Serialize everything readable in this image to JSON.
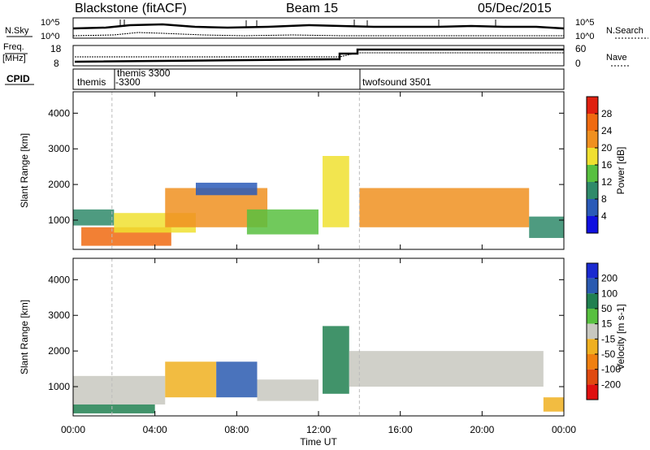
{
  "header": {
    "title": "Blackstone (fitACF)",
    "beam": "Beam 15",
    "date": "05/Dec/2015"
  },
  "noise_panel": {
    "left_label": "N.Sky",
    "right_label": "N.Search",
    "ticks": [
      "10^5",
      "10^0"
    ]
  },
  "freq_panel": {
    "left_label_line1": "Freq.",
    "left_label_line2": "[MHz]",
    "right_label": "Nave",
    "left_ticks": [
      "18",
      "8"
    ],
    "right_ticks": [
      "60",
      "0"
    ]
  },
  "cpid_panel": {
    "label": "CPID",
    "programs": [
      {
        "name": "themis",
        "start_hour": 0.0
      },
      {
        "name": "themis 3300",
        "line2": "-3300",
        "start_hour": 1.9
      },
      {
        "name": "twofsound 3501",
        "start_hour": 14.0
      }
    ]
  },
  "x_axis": {
    "label": "Time UT",
    "ticks": [
      "00:00",
      "04:00",
      "08:00",
      "12:00",
      "16:00",
      "20:00",
      "00:00"
    ]
  },
  "chart_data": [
    {
      "type": "heatmap",
      "name": "power",
      "ylabel": "Slant Range [km]",
      "xlim": [
        0,
        24
      ],
      "ylim": [
        180,
        4600
      ],
      "y_ticks": [
        "1000",
        "2000",
        "3000",
        "4000"
      ],
      "colorbar": {
        "label": "Power [dB]",
        "ticks": [
          "4",
          "8",
          "12",
          "16",
          "20",
          "24",
          "28"
        ],
        "colors": [
          "#1010e0",
          "#2a5ab8",
          "#2f8a6a",
          "#58c040",
          "#f0e030",
          "#f09020",
          "#f06a10",
          "#e02010"
        ]
      },
      "regions": [
        {
          "t": [
            0.0,
            2.0
          ],
          "r": [
            850,
            1300
          ],
          "level": 2
        },
        {
          "t": [
            0.4,
            4.8
          ],
          "r": [
            280,
            800
          ],
          "level": 6
        },
        {
          "t": [
            2.0,
            6.0
          ],
          "r": [
            650,
            1200
          ],
          "level": 4
        },
        {
          "t": [
            4.5,
            9.5
          ],
          "r": [
            800,
            1900
          ],
          "level": 5
        },
        {
          "t": [
            6.0,
            9.0
          ],
          "r": [
            1700,
            2050
          ],
          "level": 1
        },
        {
          "t": [
            8.5,
            12.0
          ],
          "r": [
            600,
            1300
          ],
          "level": 3
        },
        {
          "t": [
            12.2,
            13.5
          ],
          "r": [
            800,
            2800
          ],
          "level": 4
        },
        {
          "t": [
            14.0,
            22.3
          ],
          "r": [
            800,
            1900
          ],
          "level": 5
        },
        {
          "t": [
            22.3,
            24.0
          ],
          "r": [
            500,
            1100
          ],
          "level": 2
        }
      ]
    },
    {
      "type": "heatmap",
      "name": "velocity",
      "ylabel": "Slant Range [km]",
      "xlim": [
        0,
        24
      ],
      "ylim": [
        180,
        4600
      ],
      "y_ticks": [
        "1000",
        "2000",
        "3000",
        "4000"
      ],
      "colorbar": {
        "label": "Velocity [m s-1]",
        "ticks": [
          "200",
          "100",
          "50",
          "15",
          "-15",
          "-50",
          "-100",
          "-200"
        ],
        "colors": [
          "#1a2ad0",
          "#2a5ab0",
          "#208050",
          "#58c040",
          "#c8c8c0",
          "#f0b020",
          "#f08010",
          "#e04a10",
          "#e01010"
        ]
      },
      "regions": [
        {
          "t": [
            0.0,
            4.5
          ],
          "r": [
            500,
            1300
          ],
          "value": -15
        },
        {
          "t": [
            0.0,
            4.0
          ],
          "r": [
            250,
            500
          ],
          "value": 50
        },
        {
          "t": [
            4.5,
            7.0
          ],
          "r": [
            700,
            1700
          ],
          "value": -50
        },
        {
          "t": [
            7.0,
            9.0
          ],
          "r": [
            700,
            1700
          ],
          "value": 100
        },
        {
          "t": [
            9.0,
            12.0
          ],
          "r": [
            600,
            1200
          ],
          "value": -15
        },
        {
          "t": [
            12.2,
            13.5
          ],
          "r": [
            800,
            2700
          ],
          "value": 50
        },
        {
          "t": [
            13.5,
            23.0
          ],
          "r": [
            1000,
            2000
          ],
          "value": -15
        },
        {
          "t": [
            23.0,
            24.0
          ],
          "r": [
            300,
            700
          ],
          "value": -50
        }
      ]
    }
  ]
}
